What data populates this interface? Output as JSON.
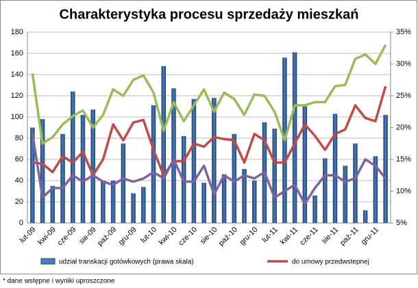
{
  "chart_data": {
    "type": "bar_line",
    "title": "Charakterystyka procesu sprzedaży mieszkań",
    "footnote": "* dane wstępne i wyniki uproszczone",
    "categories": [
      "lut-09",
      null,
      "kwi-09",
      null,
      "cze-09",
      null,
      "sie-09",
      null,
      "paź-09",
      null,
      "gru-09",
      null,
      "lut-10",
      null,
      "kwi-10",
      null,
      "cze-10",
      null,
      "sie-10",
      null,
      "paź-10",
      null,
      "gru-10",
      null,
      "lut-11",
      null,
      "kwi-11",
      null,
      "cze-11",
      null,
      "sie-11",
      null,
      "paź-11",
      null,
      "gru-11",
      null
    ],
    "ylim": [
      0,
      180
    ],
    "yticks": [
      0,
      20,
      40,
      60,
      80,
      100,
      120,
      140,
      160,
      180
    ],
    "y2lim": [
      5,
      35
    ],
    "y2ticks": [
      {
        "value": 5,
        "label": "5%"
      },
      {
        "value": 10,
        "label": "10%"
      },
      {
        "value": 15,
        "label": "15%"
      },
      {
        "value": 20,
        "label": "20%"
      },
      {
        "value": 25,
        "label": "25%"
      },
      {
        "value": 30,
        "label": "30%"
      },
      {
        "value": 35,
        "label": "35%"
      }
    ],
    "series": [
      {
        "name": "udział transkacji gotówkowych  (prawa skala)",
        "kind": "bar",
        "color": "#4a7ebb",
        "values": [
          90,
          98,
          35,
          84,
          124,
          102,
          107,
          40,
          40,
          75,
          28,
          34,
          111,
          148,
          127,
          82,
          117,
          38,
          118,
          46,
          84,
          51,
          40,
          95,
          89,
          156,
          161,
          110,
          26,
          61,
          103,
          54,
          75,
          12,
          63,
          102
        ]
      },
      {
        "name": "do umowy przedwstepnej",
        "kind": "line",
        "axis": "y2",
        "color": "#be4b48",
        "values": [
          14.5,
          14.3,
          13,
          15.5,
          14.5,
          16.2,
          12.5,
          15,
          20.5,
          18,
          20.8,
          21.2,
          16.5,
          12.5,
          14.7,
          14.7,
          17.5,
          17,
          18.5,
          18.2,
          18,
          14.5,
          19,
          18,
          14.5,
          14.5,
          17.5,
          20.5,
          18.7,
          16.5,
          19,
          19.7,
          23.5,
          21.5,
          21,
          26.5
        ]
      },
      {
        "kind": "line",
        "axis": "y2",
        "color": "#9bbb59",
        "values": [
          28.5,
          17.5,
          18.5,
          20.5,
          21.8,
          22.7,
          20,
          22,
          26,
          25,
          27.5,
          28.2,
          25.5,
          19.5,
          24,
          21,
          23.5,
          26,
          22.5,
          25.5,
          24.5,
          22,
          25.2,
          25,
          22.5,
          18,
          23.5,
          23.5,
          24,
          24,
          26.5,
          26.7,
          30.8,
          31.5,
          30,
          33
        ]
      },
      {
        "kind": "line",
        "axis": "y2",
        "color": "#7f63a1",
        "values": [
          19,
          9,
          10.5,
          10.5,
          12.5,
          11.5,
          12.5,
          11.5,
          11,
          12,
          11.5,
          12,
          13,
          12,
          15,
          11.5,
          11.5,
          14,
          9.5,
          12.5,
          11.5,
          12.5,
          12,
          13,
          9,
          10,
          11,
          8,
          10.5,
          12.5,
          12.5,
          11.5,
          12,
          15,
          14,
          12
        ]
      }
    ]
  }
}
